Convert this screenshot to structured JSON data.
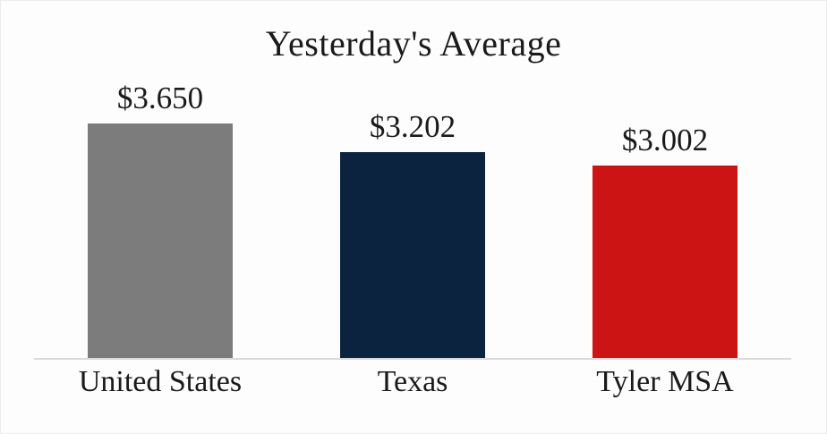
{
  "title": "Yesterday's Average",
  "chart_data": {
    "type": "bar",
    "title": "Yesterday's Average",
    "categories": [
      "United States",
      "Texas",
      "Tyler MSA"
    ],
    "values": [
      3.65,
      3.202,
      3.002
    ],
    "value_labels": [
      "$3.650",
      "$3.202",
      "$3.002"
    ],
    "bar_colors": [
      "#7C7C7C",
      "#0C2340",
      "#CD1414"
    ],
    "xlabel": "",
    "ylabel": "",
    "ylim": [
      0,
      3.65
    ],
    "grid": false,
    "legend": false,
    "axis_line_color": "#D9D9D9",
    "text_color": "#1A1A1A",
    "background_color": "#FDFDFD"
  }
}
